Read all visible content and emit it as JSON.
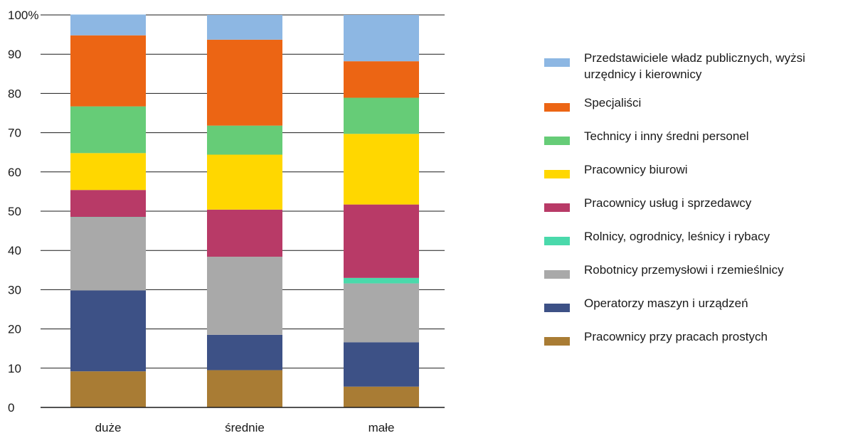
{
  "chart_data": {
    "type": "bar",
    "stacked": true,
    "categories": [
      "duże",
      "średnie",
      "małe"
    ],
    "ylim": [
      0,
      100
    ],
    "yticks": [
      0,
      10,
      20,
      30,
      40,
      50,
      60,
      70,
      80,
      90,
      100
    ],
    "ytick_labels": [
      "0",
      "10",
      "20",
      "30",
      "40",
      "50",
      "60",
      "70",
      "80",
      "90",
      "100%"
    ],
    "grid": true,
    "legend_position": "right",
    "series": [
      {
        "name": "Pracownicy przy pracach prostych",
        "color": "#a97c34",
        "values": [
          9.2,
          9.5,
          5.3
        ]
      },
      {
        "name": "Operatorzy maszyn i urządzeń",
        "color": "#3d5186",
        "values": [
          20.6,
          9.0,
          11.3
        ]
      },
      {
        "name": "Robotnicy przemysłowi i rzemieślnicy",
        "color": "#a9a9a9",
        "values": [
          18.6,
          19.9,
          15.0
        ]
      },
      {
        "name": "Rolnicy, ogrodnicy, leśnicy i rybacy",
        "color": "#4ad9ab",
        "values": [
          0.1,
          0.0,
          1.4
        ]
      },
      {
        "name": "Pracownicy usług i sprzedawcy",
        "color": "#b83a67",
        "values": [
          6.9,
          12.0,
          18.7
        ]
      },
      {
        "name": "Pracownicy biurowi",
        "color": "#ffd700",
        "values": [
          9.4,
          14.0,
          18.0
        ]
      },
      {
        "name": "Technicy i inny średni personel",
        "color": "#66cc77",
        "values": [
          11.9,
          7.4,
          9.2
        ]
      },
      {
        "name": "Specjaliści",
        "color": "#ec6514",
        "values": [
          18.1,
          21.9,
          9.3
        ]
      },
      {
        "name": "Przedstawiciele władz publicznych, wyżsi urzędnicy i kierownicy",
        "color": "#8db7e3",
        "values": [
          5.3,
          6.3,
          11.8
        ]
      }
    ]
  }
}
